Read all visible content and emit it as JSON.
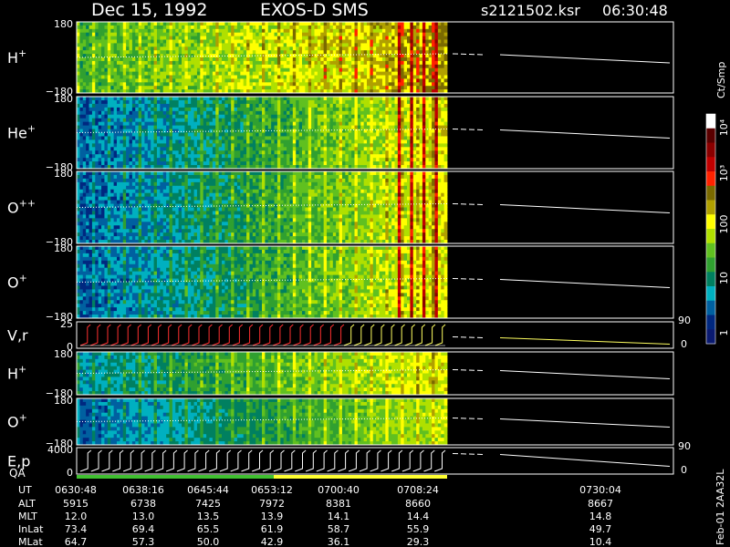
{
  "header": {
    "date": "Dec 15, 1992",
    "instrument": "EXOS-D SMS",
    "filename": "s2121502.ksr",
    "time": "06:30:48"
  },
  "colorbar": {
    "unit_label": "Ct/Smp",
    "tick_labels": [
      "10⁴",
      "10³",
      "100",
      "10",
      "1"
    ],
    "colors": [
      "#ffffff",
      "#5a0000",
      "#8b0000",
      "#c00000",
      "#ff2200",
      "#7a6a00",
      "#b0a000",
      "#ffff00",
      "#b0e000",
      "#60c020",
      "#30a030",
      "#008060",
      "#00b0c0",
      "#0060a0",
      "#002880",
      "#0a1a70"
    ]
  },
  "panels": [
    {
      "label": "H",
      "sup": "+",
      "ymax": "180",
      "ymin": "−180"
    },
    {
      "label": "He",
      "sup": "+",
      "ymax": "180",
      "ymin": "−180"
    },
    {
      "label": "O",
      "sup": "++",
      "ymax": "180",
      "ymin": "−180"
    },
    {
      "label": "O",
      "sup": "+",
      "ymax": "180",
      "ymin": "−180"
    },
    {
      "label": "V",
      "sup": "",
      "suffix": ",r",
      "ymax": "25",
      "ymin": "0",
      "right_top": "90",
      "right_bottom": "0"
    },
    {
      "label": "H",
      "sup": "+",
      "ymax": "180",
      "ymin": "−180"
    },
    {
      "label": "O",
      "sup": "+",
      "ymax": "180",
      "ymin": "−180"
    },
    {
      "label": "E,p",
      "sup": "",
      "ymax": "4000",
      "ymin": "0",
      "right_top": "90",
      "right_bottom": "0"
    }
  ],
  "qa_label": "QA",
  "side_text": "Feb-01 2AA32L",
  "footer": {
    "row_labels": [
      "UT",
      "ALT",
      "MLT",
      "InLat",
      "MLat"
    ],
    "columns": [
      {
        "UT": "0630:48",
        "ALT": "5915",
        "MLT": "12.0",
        "InLat": "73.4",
        "MLat": "64.7"
      },
      {
        "UT": "0638:16",
        "ALT": "6738",
        "MLT": "13.0",
        "InLat": "69.4",
        "MLat": "57.3"
      },
      {
        "UT": "0645:44",
        "ALT": "7425",
        "MLT": "13.5",
        "InLat": "65.5",
        "MLat": "50.0"
      },
      {
        "UT": "0653:12",
        "ALT": "7972",
        "MLT": "13.9",
        "InLat": "61.9",
        "MLat": "42.9"
      },
      {
        "UT": "0700:40",
        "ALT": "8381",
        "MLT": "14.1",
        "InLat": "58.7",
        "MLat": "36.1"
      },
      {
        "UT": "0708:24",
        "ALT": "8660",
        "MLT": "14.4",
        "InLat": "55.9",
        "MLat": "29.3"
      },
      {
        "UT": "0730:04",
        "ALT": "8667",
        "MLT": "14.8",
        "InLat": "49.7",
        "MLat": "10.4"
      }
    ]
  },
  "chart_data": {
    "type": "heatmap",
    "title": "Dec 15, 1992 EXOS-D SMS",
    "x_ticks": [
      "0630:48",
      "0638:16",
      "0645:44",
      "0653:12",
      "0700:40",
      "0708:24",
      "0730:04"
    ],
    "colorbar_range": [
      1,
      10000
    ],
    "colorbar_scale": "log",
    "series": [
      {
        "name": "H+",
        "ylim": [
          -180,
          180
        ]
      },
      {
        "name": "He+",
        "ylim": [
          -180,
          180
        ]
      },
      {
        "name": "O++",
        "ylim": [
          -180,
          180
        ]
      },
      {
        "name": "O+",
        "ylim": [
          -180,
          180
        ]
      },
      {
        "name": "V,r",
        "ylim": [
          0,
          25
        ]
      },
      {
        "name": "H+",
        "ylim": [
          -180,
          180
        ]
      },
      {
        "name": "O+",
        "ylim": [
          -180,
          180
        ]
      },
      {
        "name": "E,p",
        "ylim": [
          0,
          4000
        ]
      }
    ]
  }
}
